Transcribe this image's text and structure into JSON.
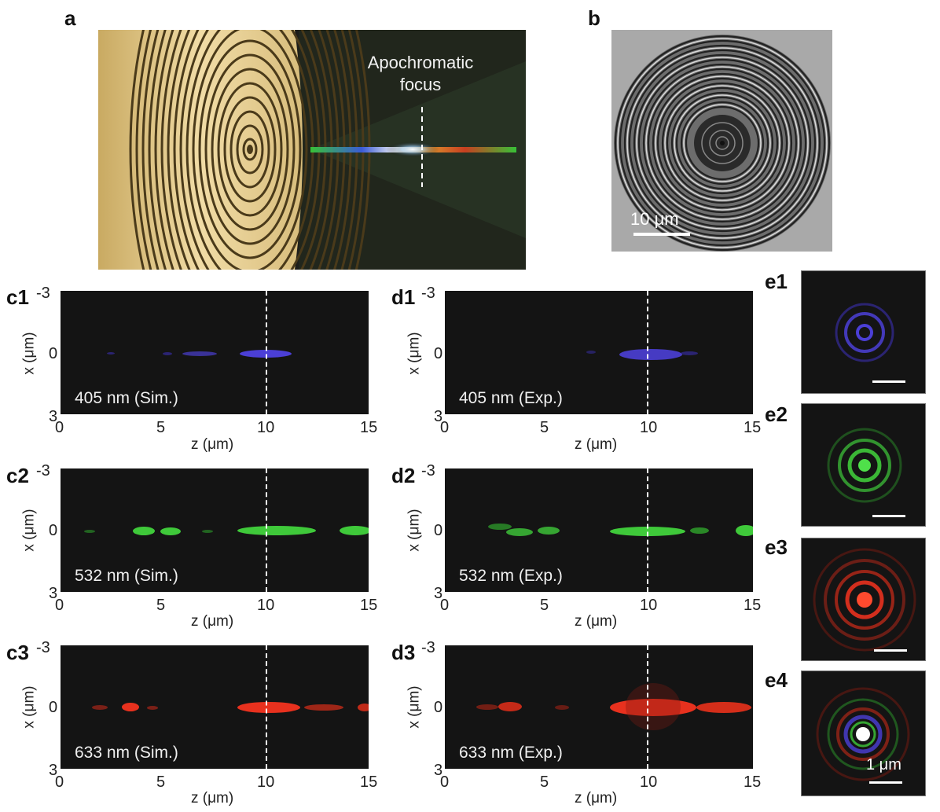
{
  "panel_labels": {
    "a": "a",
    "b": "b",
    "c1": "c1",
    "c2": "c2",
    "c3": "c3",
    "d1": "d1",
    "d2": "d2",
    "d3": "d3",
    "e1": "e1",
    "e2": "e2",
    "e3": "e3",
    "e4": "e4"
  },
  "panel_a": {
    "annotation_line1": "Apochromatic",
    "annotation_line2": "focus"
  },
  "panel_b": {
    "scalebar_label": "10 μm"
  },
  "panel_e": {
    "scalebar_label": "1 μm"
  },
  "axes": {
    "x_label": "z (μm)",
    "y_label": "x (μm)",
    "x_ticks": [
      "0",
      "5",
      "10",
      "15"
    ],
    "y_ticks": [
      "-3",
      "0",
      "3"
    ]
  },
  "plots": [
    {
      "id": "c1",
      "label": "405 nm (Sim.)",
      "color": "#4b3fd6"
    },
    {
      "id": "d1",
      "label": "405 nm (Exp.)",
      "color": "#4b3fd6"
    },
    {
      "id": "c2",
      "label": "532 nm (Sim.)",
      "color": "#3fc93a"
    },
    {
      "id": "d2",
      "label": "532 nm (Exp.)",
      "color": "#3fc93a"
    },
    {
      "id": "c3",
      "label": "633 nm (Sim.)",
      "color": "#e8311e"
    },
    {
      "id": "d3",
      "label": "633 nm (Exp.)",
      "color": "#e8311e"
    }
  ],
  "colors": {
    "lens_gold": "#e4c98a",
    "plot_background": "#141414",
    "focus_line": "#ffffff"
  }
}
